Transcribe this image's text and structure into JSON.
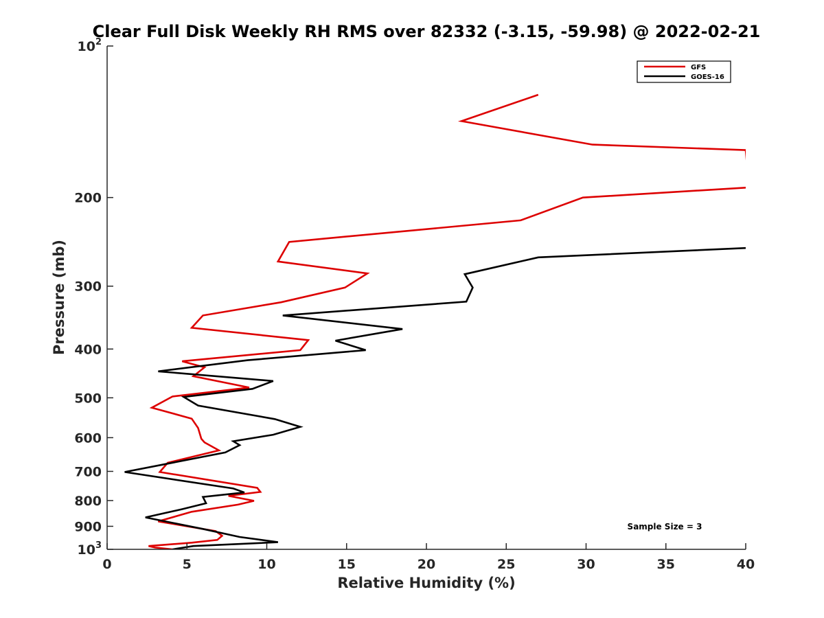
{
  "chart_data": {
    "type": "line",
    "title": "Clear Full Disk Weekly RH RMS over 82332 (-3.15, -59.98) @ 2022-02-21",
    "xlabel": "Relative Humidity (%)",
    "ylabel": "Pressure (mb)",
    "xlim": [
      0,
      40
    ],
    "ylim": [
      1000,
      100
    ],
    "yscale": "log",
    "x_ticks": [
      0,
      5,
      10,
      15,
      20,
      25,
      30,
      35,
      40
    ],
    "x_tick_labels": [
      "0",
      "5",
      "10",
      "15",
      "20",
      "25",
      "30",
      "35",
      "40"
    ],
    "y_ticks": [
      {
        "value": 100,
        "base": "10",
        "exp": "2"
      },
      {
        "value": 200,
        "label": "200"
      },
      {
        "value": 300,
        "label": "300"
      },
      {
        "value": 400,
        "label": "400"
      },
      {
        "value": 500,
        "label": "500"
      },
      {
        "value": 600,
        "label": "600"
      },
      {
        "value": 700,
        "label": "700"
      },
      {
        "value": 800,
        "label": "800"
      },
      {
        "value": 900,
        "label": "900"
      },
      {
        "value": 1000,
        "base": "10",
        "exp": "3"
      }
    ],
    "grid": false,
    "legend_position": "top-right",
    "annotation": "Sample Size = 3",
    "series": [
      {
        "name": "GFS",
        "color": "#dd0000",
        "points": [
          [
            27.0,
            125
          ],
          [
            22.2,
            141
          ],
          [
            30.4,
            157
          ],
          [
            40.0,
            161
          ],
          [
            40.2,
            191
          ],
          [
            29.8,
            200
          ],
          [
            25.9,
            222
          ],
          [
            11.4,
            245
          ],
          [
            10.7,
            268
          ],
          [
            16.3,
            283
          ],
          [
            14.9,
            302
          ],
          [
            10.9,
            323
          ],
          [
            6.0,
            343
          ],
          [
            5.3,
            363
          ],
          [
            12.6,
            384
          ],
          [
            12.1,
            402
          ],
          [
            4.7,
            423
          ],
          [
            6.1,
            435
          ],
          [
            5.4,
            453
          ],
          [
            8.9,
            477
          ],
          [
            4.1,
            497
          ],
          [
            2.8,
            523
          ],
          [
            5.3,
            550
          ],
          [
            5.7,
            574
          ],
          [
            5.9,
            603
          ],
          [
            6.1,
            613
          ],
          [
            7.0,
            636
          ],
          [
            3.8,
            673
          ],
          [
            3.3,
            702
          ],
          [
            9.4,
            755
          ],
          [
            9.6,
            769
          ],
          [
            7.6,
            783
          ],
          [
            9.2,
            801
          ],
          [
            8.2,
            815
          ],
          [
            5.3,
            842
          ],
          [
            3.2,
            880
          ],
          [
            6.8,
            920
          ],
          [
            7.2,
            940
          ],
          [
            6.9,
            958
          ],
          [
            5.3,
            970
          ],
          [
            2.6,
            985
          ],
          [
            3.0,
            992
          ],
          [
            4.1,
            1000
          ]
        ]
      },
      {
        "name": "GOES-16",
        "color": "#000000",
        "points": [
          [
            40.0,
            252
          ],
          [
            27.0,
            263
          ],
          [
            22.4,
            284
          ],
          [
            22.9,
            302
          ],
          [
            22.5,
            322
          ],
          [
            11.0,
            343
          ],
          [
            18.5,
            365
          ],
          [
            14.3,
            385
          ],
          [
            16.2,
            402
          ],
          [
            8.8,
            421
          ],
          [
            3.2,
            443
          ],
          [
            10.4,
            463
          ],
          [
            9.1,
            480
          ],
          [
            4.8,
            498
          ],
          [
            5.7,
            518
          ],
          [
            10.5,
            551
          ],
          [
            12.1,
            571
          ],
          [
            10.4,
            592
          ],
          [
            7.9,
            610
          ],
          [
            8.3,
            621
          ],
          [
            7.4,
            642
          ],
          [
            1.1,
            702
          ],
          [
            7.9,
            757
          ],
          [
            8.6,
            771
          ],
          [
            6.0,
            787
          ],
          [
            6.2,
            810
          ],
          [
            4.7,
            832
          ],
          [
            2.4,
            864
          ],
          [
            6.0,
            911
          ],
          [
            8.3,
            945
          ],
          [
            10.7,
            968
          ],
          [
            5.4,
            985
          ],
          [
            4.1,
            1000
          ]
        ]
      }
    ]
  }
}
